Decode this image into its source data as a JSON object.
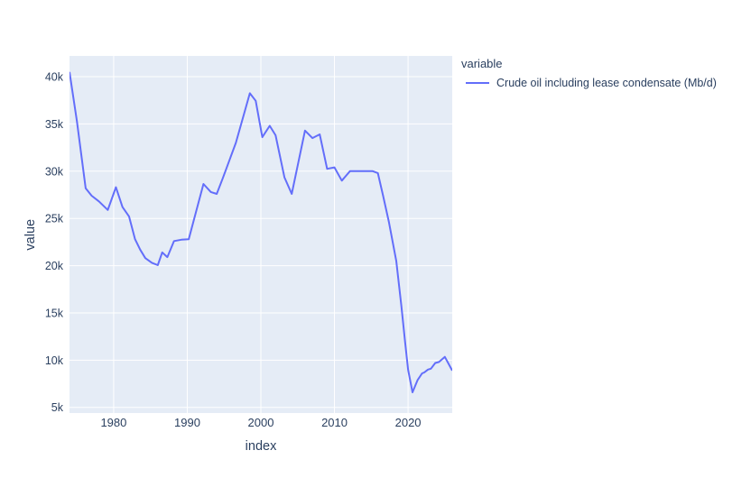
{
  "chart_data": {
    "type": "line",
    "title": "",
    "xlabel": "index",
    "ylabel": "value",
    "xlim": [
      1974,
      2026
    ],
    "ylim": [
      4400,
      42200
    ],
    "grid": true,
    "x_ticks": {
      "values": [
        1980,
        1990,
        2000,
        2010,
        2020
      ],
      "labels": [
        "1980",
        "1990",
        "2000",
        "2010",
        "2020"
      ]
    },
    "y_ticks": {
      "values": [
        5000,
        10000,
        15000,
        20000,
        25000,
        30000,
        35000,
        40000
      ],
      "labels": [
        "5k",
        "10k",
        "15k",
        "20k",
        "25k",
        "30k",
        "35k",
        "40k"
      ]
    },
    "legend": {
      "title": "variable",
      "position": "right"
    },
    "colors": {
      "paper_bg": "#ffffff",
      "plot_bg": "#e5ecf6",
      "grid": "#ffffff",
      "text": "#2a3f5f",
      "accent": "#636efa"
    },
    "series": [
      {
        "name": "Crude oil including lease condensate (Mb/d)",
        "color": "#636efa",
        "points": [
          [
            1974.0,
            40500
          ],
          [
            1975.0,
            35300
          ],
          [
            1976.2,
            28200
          ],
          [
            1977.0,
            27400
          ],
          [
            1978.0,
            26800
          ],
          [
            1979.2,
            25900
          ],
          [
            1980.3,
            28300
          ],
          [
            1981.2,
            26200
          ],
          [
            1982.1,
            25200
          ],
          [
            1982.9,
            22800
          ],
          [
            1983.6,
            21700
          ],
          [
            1984.3,
            20800
          ],
          [
            1985.2,
            20300
          ],
          [
            1986.0,
            20050
          ],
          [
            1986.6,
            21400
          ],
          [
            1987.3,
            20900
          ],
          [
            1988.2,
            22600
          ],
          [
            1989.2,
            22750
          ],
          [
            1990.2,
            22800
          ],
          [
            1992.2,
            28650
          ],
          [
            1993.2,
            27800
          ],
          [
            1994.0,
            27600
          ],
          [
            1994.8,
            29200
          ],
          [
            1996.6,
            33000
          ],
          [
            1998.5,
            38250
          ],
          [
            1999.3,
            37450
          ],
          [
            2000.2,
            33600
          ],
          [
            2001.2,
            34800
          ],
          [
            2002.0,
            33800
          ],
          [
            2003.2,
            29350
          ],
          [
            2004.2,
            27600
          ],
          [
            2006.0,
            34300
          ],
          [
            2007.0,
            33500
          ],
          [
            2008.0,
            33900
          ],
          [
            2009.0,
            30250
          ],
          [
            2010.0,
            30400
          ],
          [
            2011.0,
            29000
          ],
          [
            2012.1,
            30000
          ],
          [
            2015.2,
            30000
          ],
          [
            2015.9,
            29800
          ],
          [
            2016.6,
            27400
          ],
          [
            2017.4,
            24600
          ],
          [
            2018.4,
            20500
          ],
          [
            2019.1,
            15700
          ],
          [
            2019.6,
            11900
          ],
          [
            2020.0,
            9000
          ],
          [
            2020.6,
            6600
          ],
          [
            2021.3,
            7900
          ],
          [
            2021.9,
            8600
          ],
          [
            2022.2,
            8700
          ],
          [
            2022.7,
            9000
          ],
          [
            2023.1,
            9100
          ],
          [
            2023.7,
            9700
          ],
          [
            2024.2,
            9800
          ],
          [
            2025.0,
            10350
          ],
          [
            2026.0,
            8900
          ]
        ]
      }
    ]
  }
}
